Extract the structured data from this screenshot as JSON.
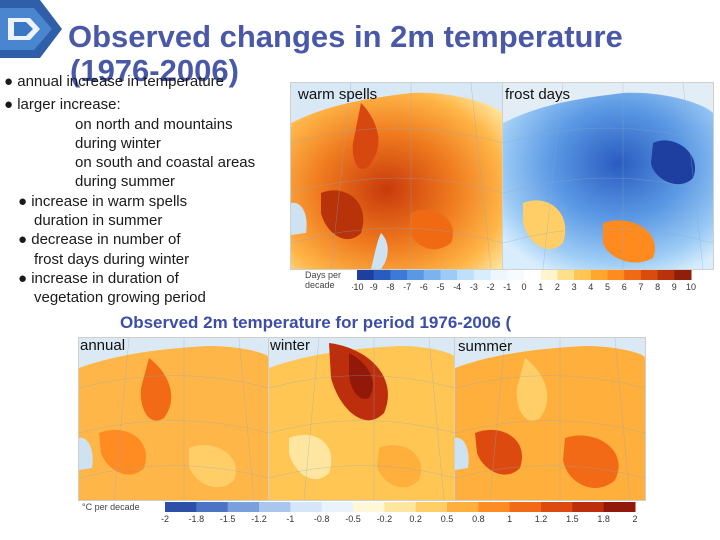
{
  "title": {
    "line1": "Observed changes in 2m temperature",
    "line2": "(1976-2006)"
  },
  "bullets": [
    {
      "text": "● annual increase in temperature"
    },
    {
      "text": "● larger increase:"
    },
    {
      "text": "on north and mountains"
    },
    {
      "text": "during winter"
    },
    {
      "text": "on south and coastal areas"
    },
    {
      "text": "during summer"
    },
    {
      "text": "● increase in warm spells"
    },
    {
      "text": "duration in summer"
    },
    {
      "text": "● decrease in number of"
    },
    {
      "text": "frost days during winter"
    },
    {
      "text": "● increase in duration of"
    },
    {
      "text": "vegetation growing period"
    }
  ],
  "top_maps": {
    "warm_label": "warm spells",
    "frost_label": "frost days",
    "legend_title": "Days per decade",
    "scale_labels": [
      "-10",
      "-9",
      "-8",
      "-7",
      "-6",
      "-5",
      "-4",
      "-3",
      "-2",
      "-1",
      "0",
      "1",
      "2",
      "3",
      "4",
      "5",
      "6",
      "7",
      "8",
      "9",
      "10"
    ]
  },
  "subtitle": "Observed 2m temperature for period 1976-2006 (",
  "bottom_maps": {
    "annual_label": "annual",
    "winter_label": "winter",
    "summer_label": "summer",
    "legend_title": "°C per decade",
    "scale_labels": [
      "-2",
      "-1.8",
      "-1.5",
      "-1.2",
      "-1",
      "-0.8",
      "-0.5",
      "-0.2",
      "0.2",
      "0.5",
      "0.8",
      "1",
      "1.2",
      "1.5",
      "1.8",
      "2"
    ]
  },
  "colors": {
    "title": "#4a58a8",
    "warm_scale": [
      "#1f3fa0",
      "#2a5cc0",
      "#3d7ad6",
      "#5a98e4",
      "#7ab3ee",
      "#9ccbf5",
      "#bfe0fb",
      "#d9eefd",
      "#eef7fe",
      "#f7fbff",
      "#ffffff",
      "#fff4cc",
      "#ffe08a",
      "#ffc654",
      "#ffa62e",
      "#ff8a1e",
      "#f06a14",
      "#d94c0e",
      "#b8320a",
      "#8f1f08"
    ],
    "temp_scale": [
      "#2e4fa8",
      "#4d74c4",
      "#7aa0dc",
      "#a9c7ee",
      "#d4e6f8",
      "#eaf3fc",
      "#fff8d8",
      "#ffe6a0",
      "#ffce66",
      "#ffaf3c",
      "#ff8c22",
      "#f26a16",
      "#dc4a10",
      "#bd2e0c",
      "#92190a"
    ]
  }
}
